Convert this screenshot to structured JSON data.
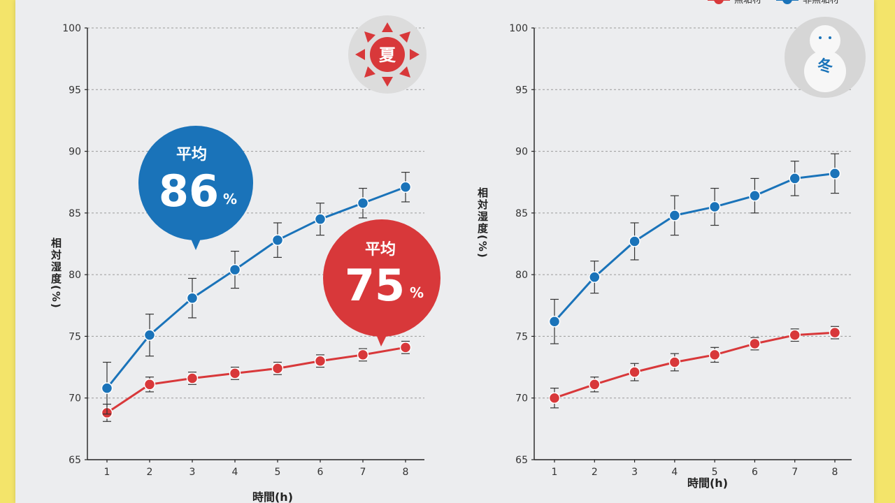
{
  "legend": [
    {
      "label": "無垢材",
      "color": "#d8383a"
    },
    {
      "label": "非無垢材",
      "color": "#1a73b9"
    }
  ],
  "colors": {
    "red": "#d8383a",
    "blue": "#1a73b9",
    "grid": "#9a9a9a",
    "axis": "#222222"
  },
  "charts": [
    {
      "season_label": "夏",
      "season_icon": "sun-icon",
      "bubbles": [
        {
          "title": "平均",
          "value": "86",
          "unit": "%",
          "color": "#1a73b9"
        },
        {
          "title": "平均",
          "value": "75",
          "unit": "%",
          "color": "#d8383a"
        }
      ]
    },
    {
      "season_label": "冬",
      "season_icon": "snowman-icon",
      "bubbles": []
    }
  ],
  "chart_data": [
    {
      "type": "line",
      "xlabel": "時間(h)",
      "ylabel": "相対湿度(%)",
      "x": [
        1,
        2,
        3,
        4,
        5,
        6,
        7,
        8
      ],
      "ylim": [
        65,
        100
      ],
      "yticks": [
        65,
        70,
        75,
        80,
        85,
        90,
        95,
        100
      ],
      "grid": true,
      "series": [
        {
          "name": "非無垢材",
          "color": "#1a73b9",
          "values": [
            70.8,
            75.1,
            78.1,
            80.4,
            82.8,
            84.5,
            85.8,
            87.1
          ],
          "error": [
            2.1,
            1.7,
            1.6,
            1.5,
            1.4,
            1.3,
            1.2,
            1.2
          ]
        },
        {
          "name": "無垢材",
          "color": "#d8383a",
          "values": [
            68.8,
            71.1,
            71.6,
            72.0,
            72.4,
            73.0,
            73.5,
            74.1
          ],
          "error": [
            0.7,
            0.6,
            0.5,
            0.5,
            0.5,
            0.5,
            0.5,
            0.5
          ]
        }
      ]
    },
    {
      "type": "line",
      "xlabel": "時間(h)",
      "ylabel": "相対湿度(%)",
      "x": [
        1,
        2,
        3,
        4,
        5,
        6,
        7,
        8
      ],
      "ylim": [
        65,
        100
      ],
      "yticks": [
        65,
        70,
        75,
        80,
        85,
        90,
        95,
        100
      ],
      "grid": true,
      "series": [
        {
          "name": "非無垢材",
          "color": "#1a73b9",
          "values": [
            76.2,
            79.8,
            82.7,
            84.8,
            85.5,
            86.4,
            87.8,
            88.2
          ],
          "error": [
            1.8,
            1.3,
            1.5,
            1.6,
            1.5,
            1.4,
            1.4,
            1.6
          ]
        },
        {
          "name": "無垢材",
          "color": "#d8383a",
          "values": [
            70.0,
            71.1,
            72.1,
            72.9,
            73.5,
            74.4,
            75.1,
            75.3
          ],
          "error": [
            0.8,
            0.6,
            0.7,
            0.7,
            0.6,
            0.5,
            0.5,
            0.5
          ]
        }
      ]
    }
  ]
}
